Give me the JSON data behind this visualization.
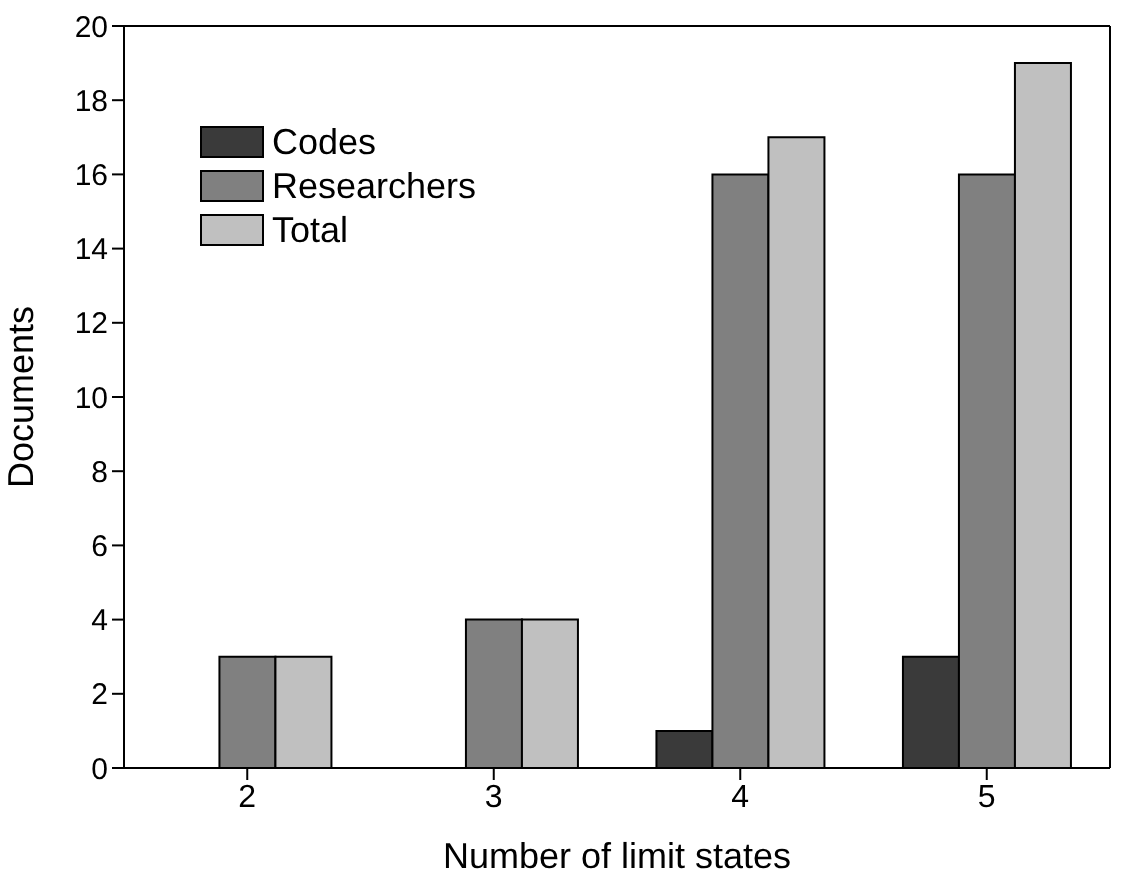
{
  "chart_data": {
    "type": "bar",
    "xlabel": "Number of limit states",
    "ylabel": "Documents",
    "categories": [
      "2",
      "3",
      "4",
      "5"
    ],
    "series": [
      {
        "name": "Codes",
        "color": "#3a3a3a",
        "values": [
          0,
          0,
          1,
          3
        ]
      },
      {
        "name": "Researchers",
        "color": "#808080",
        "values": [
          3,
          4,
          16,
          16
        ]
      },
      {
        "name": "Total",
        "color": "#c0c0c0",
        "values": [
          3,
          4,
          17,
          19
        ]
      }
    ],
    "ylim": [
      0,
      20
    ],
    "yticks": [
      0,
      2,
      4,
      6,
      8,
      10,
      12,
      14,
      16,
      18,
      20
    ],
    "grid": false,
    "legend": "top left"
  }
}
